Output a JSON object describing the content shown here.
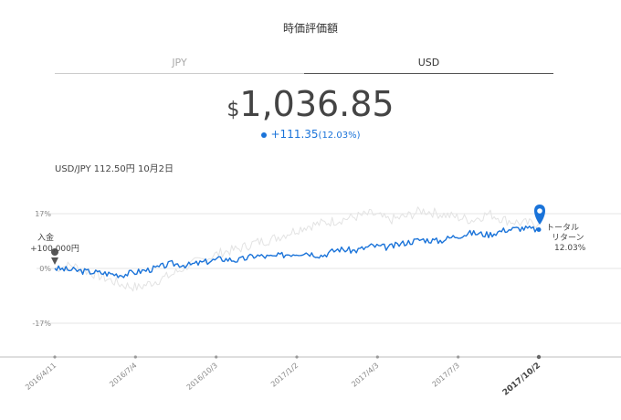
{
  "title": "時価評価額",
  "tabs": [
    {
      "label": "JPY",
      "active": false
    },
    {
      "label": "USD",
      "active": true
    }
  ],
  "value": {
    "currency": "$",
    "amount": "1,036.85"
  },
  "change": {
    "amount": "+111.35",
    "percent": "(12.03%)"
  },
  "rate_text": "USD/JPY 112.50円 10月2日",
  "colors": {
    "accent": "#1a73d9",
    "grid": "#e6e6e6",
    "ghost": "#e3e3e3"
  },
  "chart_data": {
    "type": "line",
    "x_ticks": [
      "2016/4/11",
      "2016/7/4",
      "2016/10/3",
      "2017/1/2",
      "2017/4/3",
      "2017/7/3",
      "2017/10/2"
    ],
    "y_ticks": [
      "17%",
      "0%",
      "-17%"
    ],
    "ylim": [
      -25,
      25
    ],
    "deposit_label": [
      "入金",
      "+100,000円"
    ],
    "end_label": [
      "トータル",
      "リターン",
      "12.03%"
    ],
    "series": [
      {
        "values": [
          0,
          -0.5,
          -1,
          -1.5,
          -2,
          -1,
          0,
          1.5,
          1,
          2,
          3,
          2.5,
          4,
          3.5,
          4.5,
          5,
          4,
          6,
          5.5,
          7,
          6.5,
          8,
          9,
          8.5,
          10,
          11,
          10.5,
          12,
          12.5,
          12.03
        ]
      },
      {
        "values": [
          0,
          1,
          -1,
          -3,
          -5,
          -6,
          -4,
          -2,
          1,
          3,
          5,
          6,
          8,
          9,
          11,
          13,
          14,
          15,
          16,
          17,
          15,
          16,
          18,
          17,
          16,
          15,
          17,
          15,
          14,
          14
        ]
      }
    ]
  }
}
